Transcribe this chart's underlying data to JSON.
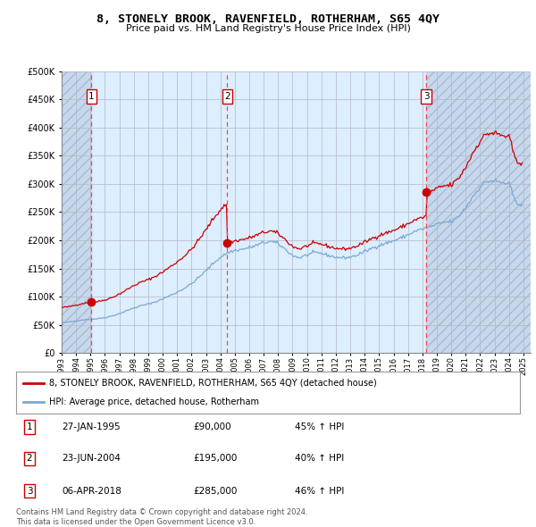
{
  "title": "8, STONELY BROOK, RAVENFIELD, ROTHERHAM, S65 4QY",
  "subtitle": "Price paid vs. HM Land Registry's House Price Index (HPI)",
  "ylim": [
    0,
    500000
  ],
  "yticks": [
    0,
    50000,
    100000,
    150000,
    200000,
    250000,
    300000,
    350000,
    400000,
    450000,
    500000
  ],
  "xlim_start": 1993.0,
  "xlim_end": 2025.5,
  "background_color": "#ffffff",
  "plot_bg_color": "#ddeeff",
  "hatch_color": "#c8d8ec",
  "grid_color": "#b0b8c8",
  "sale_color": "#cc0000",
  "hpi_color": "#7aaad0",
  "legend_label_sale": "8, STONELY BROOK, RAVENFIELD, ROTHERHAM, S65 4QY (detached house)",
  "legend_label_hpi": "HPI: Average price, detached house, Rotherham",
  "sales": [
    {
      "num": 1,
      "date_x": 1995.07,
      "price": 90000
    },
    {
      "num": 2,
      "date_x": 2004.48,
      "price": 195000
    },
    {
      "num": 3,
      "date_x": 2018.26,
      "price": 285000
    }
  ],
  "vline_color": "#ff4444",
  "table_rows": [
    {
      "num": "1",
      "date": "27-JAN-1995",
      "price": "£90,000",
      "pct": "45% ↑ HPI"
    },
    {
      "num": "2",
      "date": "23-JUN-2004",
      "price": "£195,000",
      "pct": "40% ↑ HPI"
    },
    {
      "num": "3",
      "date": "06-APR-2018",
      "price": "£285,000",
      "pct": "46% ↑ HPI"
    }
  ],
  "footer": "Contains HM Land Registry data © Crown copyright and database right 2024.\nThis data is licensed under the Open Government Licence v3.0."
}
